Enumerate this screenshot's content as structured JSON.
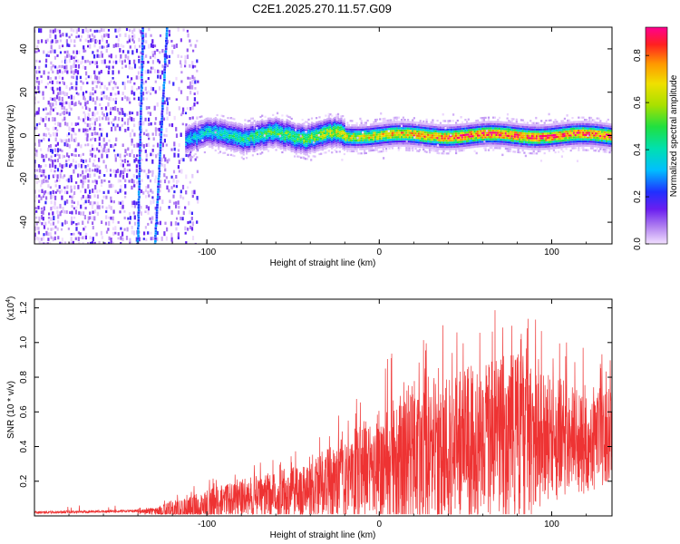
{
  "chart_data": [
    {
      "type": "heatmap",
      "title": "C2E1.2025.270.11.57.G09",
      "xlabel": "Height of straight line (km)",
      "ylabel": "Frequency (Hz)",
      "xlim": [
        -200,
        135
      ],
      "ylim": [
        -50,
        50
      ],
      "xticks": [
        -100,
        0,
        100
      ],
      "yticks": [
        -40,
        -20,
        0,
        20,
        40
      ],
      "colorbar": {
        "label": "Normalized spectral amplitude",
        "range": [
          0,
          0.92
        ],
        "ticks": [
          0.0,
          0.2,
          0.4,
          0.6,
          0.8
        ]
      },
      "features": {
        "noise_region_x": [
          -200,
          -105
        ],
        "signal_center_hz": 0,
        "signal_band_halfwidth_hz": 5,
        "signal_band_start_x": -112,
        "peak_amplitude": 0.9,
        "diagonal_streaks": [
          {
            "x_at_top": -137,
            "x_at_bottom": -140
          },
          {
            "x_at_top": -123,
            "x_at_bottom": -130
          }
        ]
      }
    },
    {
      "type": "line",
      "xlabel": "Height of straight line (km)",
      "ylabel": "SNR (10 * v/v)",
      "y_multiplier_label": "(x10",
      "y_multiplier_exp": "4",
      "y_multiplier_close": ")",
      "xlim": [
        -200,
        135
      ],
      "ylim": [
        0,
        1.25
      ],
      "xticks": [
        -100,
        0,
        100
      ],
      "yticks": [
        0.2,
        0.4,
        0.6,
        0.8,
        1.0,
        1.2
      ],
      "series": [
        {
          "name": "SNR",
          "color": "#ee3333",
          "envelope_x": [
            -200,
            -130,
            -120,
            -100,
            -80,
            -60,
            -40,
            -20,
            0,
            20,
            40,
            60,
            80,
            100,
            120,
            135
          ],
          "envelope_mean": [
            0.02,
            0.03,
            0.03,
            0.07,
            0.11,
            0.13,
            0.17,
            0.24,
            0.33,
            0.38,
            0.43,
            0.47,
            0.5,
            0.48,
            0.47,
            0.5
          ],
          "envelope_peak": [
            0.03,
            0.06,
            0.12,
            0.2,
            0.27,
            0.33,
            0.42,
            0.58,
            0.82,
            1.02,
            1.08,
            1.12,
            1.22,
            1.0,
            0.92,
            0.88
          ]
        }
      ]
    }
  ]
}
